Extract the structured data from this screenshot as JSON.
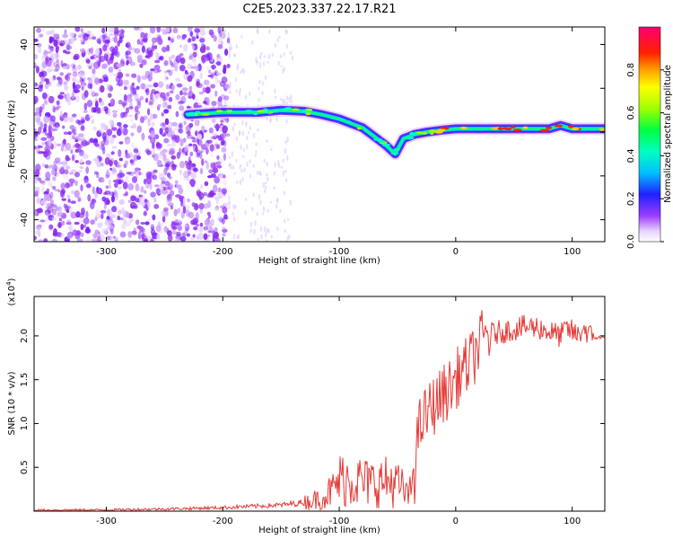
{
  "title": "C2E5.2023.337.22.17.R21",
  "chart_data": [
    {
      "type": "heatmap",
      "xlabel": "Height of straight line (km)",
      "ylabel": "Frequency (Hz)",
      "xlim": [
        -362,
        128
      ],
      "ylim": [
        -50,
        48
      ],
      "xticks": [
        -300,
        -200,
        -100,
        0,
        100
      ],
      "yticks": [
        -40,
        -20,
        0,
        20,
        40
      ],
      "colorbar": {
        "label": "Normalized spectral amplitude",
        "range": [
          0,
          1
        ],
        "ticks": [
          0.0,
          0.2,
          0.4,
          0.6,
          0.8
        ]
      },
      "ridge": {
        "x": [
          -230,
          -200,
          -170,
          -150,
          -130,
          -115,
          -100,
          -90,
          -80,
          -70,
          -60,
          -52,
          -45,
          -35,
          -25,
          -10,
          0,
          20,
          40,
          60,
          80,
          90,
          100,
          110,
          128
        ],
        "y": [
          8,
          9,
          9,
          10,
          9.5,
          8,
          6,
          4,
          2,
          -2,
          -6,
          -10,
          -3,
          -1,
          0,
          1,
          1.5,
          1.5,
          1.5,
          1.5,
          1.5,
          3,
          1.5,
          1.5,
          1.5
        ]
      },
      "noise_region_x": [
        -362,
        -195
      ],
      "grid": false
    },
    {
      "type": "line",
      "xlabel": "Height of straight line (km)",
      "ylabel": "SNR (10 * v/v)",
      "y_multiplier": "(x10",
      "y_multiplier_exp": "4",
      "y_multiplier_close": ")",
      "xlim": [
        -362,
        128
      ],
      "ylim": [
        0,
        24500
      ],
      "xticks": [
        -300,
        -200,
        -100,
        0,
        100
      ],
      "yticks": [
        5000,
        10000,
        15000,
        20000
      ],
      "ytick_labels": [
        "0.5",
        "1.0",
        "1.5",
        "2.0"
      ],
      "series": [
        {
          "color": "#e53935",
          "x": [
            -362,
            -300,
            -250,
            -200,
            -150,
            -130,
            -115,
            -105,
            -100,
            -95,
            -85,
            -75,
            -65,
            -55,
            -50,
            -45,
            -40,
            -36,
            -33,
            -30,
            -25,
            -20,
            -15,
            -10,
            -5,
            0,
            5,
            10,
            15,
            20,
            25,
            30,
            40,
            50,
            60,
            70,
            80,
            90,
            95,
            100,
            105,
            110,
            115,
            120,
            128
          ],
          "y": [
            120,
            150,
            250,
            400,
            700,
            1000,
            1500,
            2500,
            3500,
            3800,
            3500,
            3200,
            3300,
            3400,
            3000,
            2500,
            1500,
            5000,
            8000,
            10000,
            11000,
            12000,
            12500,
            13500,
            14000,
            15000,
            16000,
            16500,
            17500,
            19000,
            20000,
            20200,
            20500,
            20800,
            21000,
            21000,
            20500,
            20000,
            20800,
            20500,
            20000,
            21000,
            20000,
            19800,
            19800
          ]
        }
      ]
    }
  ]
}
